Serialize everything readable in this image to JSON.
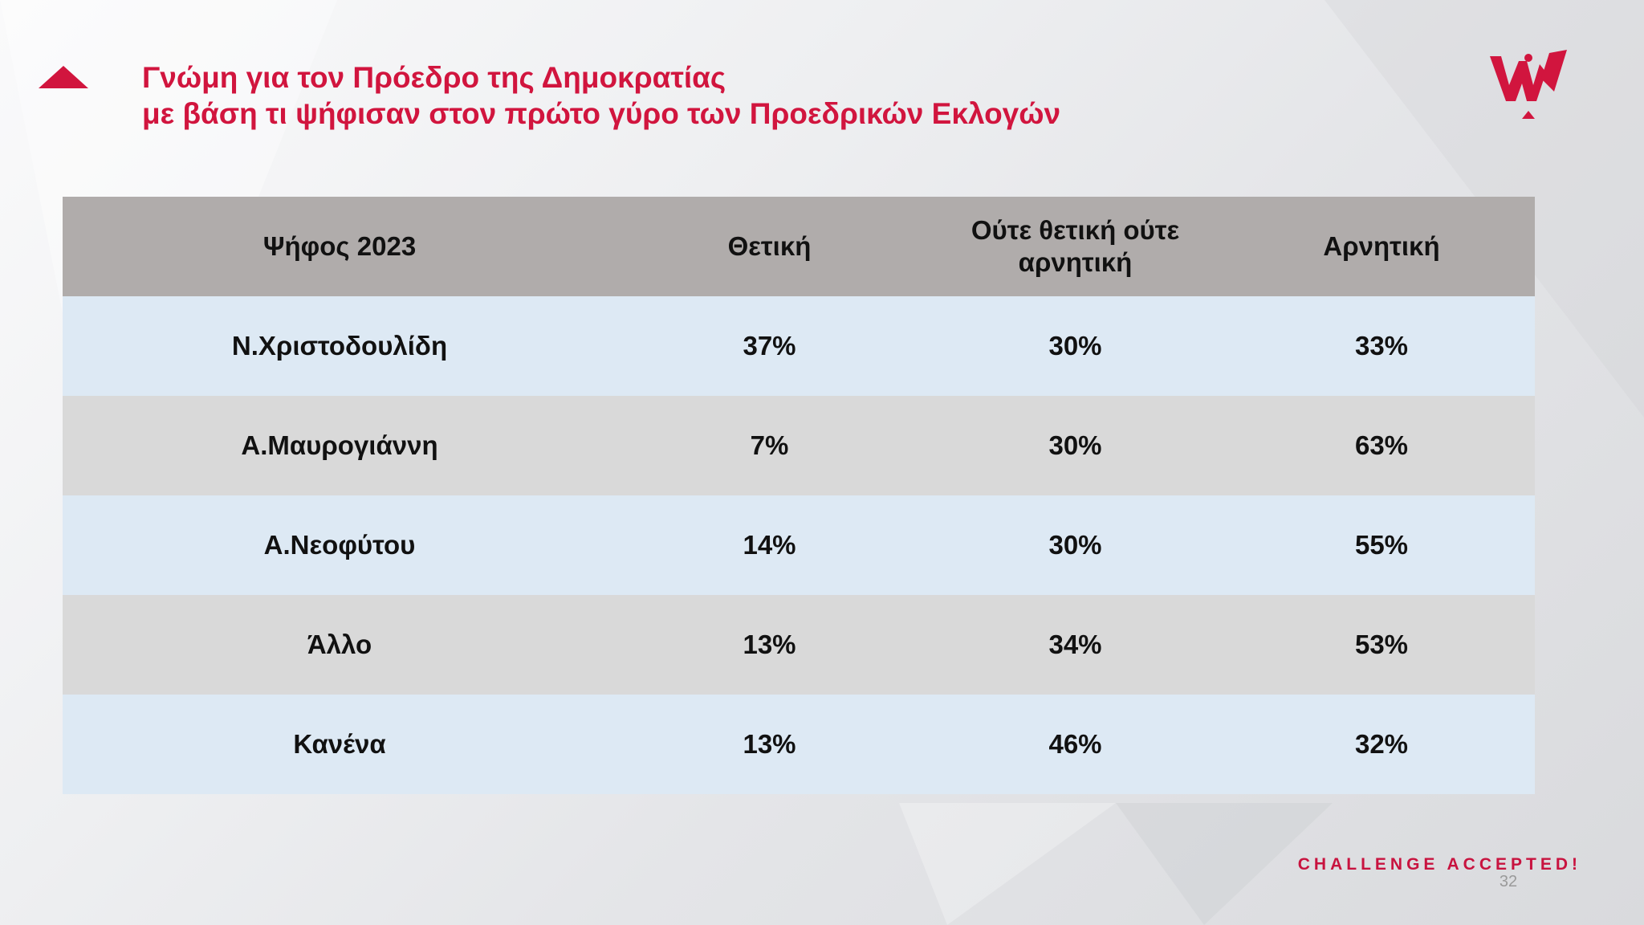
{
  "slide": {
    "title_line1": "Γνώμη για τον Πρόεδρο της Δημοκρατίας",
    "title_line2": "με βάση τι ψήφισαν στον πρώτο γύρο των Προεδρικών Εκλογών",
    "tagline": "CHALLENGE ACCEPTED!",
    "page_number": "32",
    "colors": {
      "accent": "#d1153e",
      "header_row": "#b0acab",
      "row_light_blue": "#dde9f4",
      "row_grey": "#d9d9d9"
    },
    "logo_icon": "w-crown-logo-icon",
    "arrow_icon": "red-triangle-icon"
  },
  "table": {
    "headers": [
      "Ψήφος 2023",
      "Θετική",
      "Ούτε θετική ούτε αρνητική",
      "Αρνητική"
    ],
    "rows": [
      [
        "Ν.Χριστοδουλίδη",
        "37%",
        "30%",
        "33%"
      ],
      [
        "Α.Μαυρογιάννη",
        "7%",
        "30%",
        "63%"
      ],
      [
        "Α.Νεοφύτου",
        "14%",
        "30%",
        "55%"
      ],
      [
        "Άλλο",
        "13%",
        "34%",
        "53%"
      ],
      [
        "Κανένα",
        "13%",
        "46%",
        "32%"
      ]
    ]
  }
}
